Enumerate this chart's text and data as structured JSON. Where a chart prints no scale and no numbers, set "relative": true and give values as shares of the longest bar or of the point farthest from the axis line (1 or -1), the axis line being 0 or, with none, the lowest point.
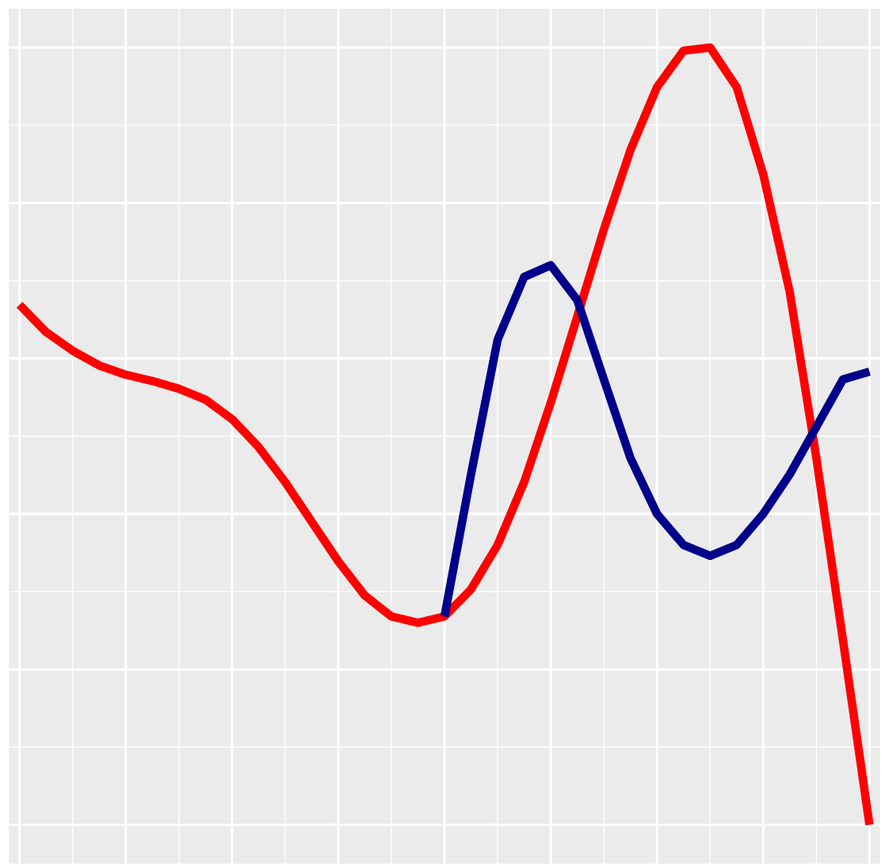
{
  "chart_data": {
    "type": "line",
    "relative": true,
    "grid": true,
    "legend": false,
    "line_style": "solid",
    "marker": "none",
    "categories": [
      null,
      null,
      null,
      null,
      null,
      null,
      null,
      null,
      null,
      null,
      null,
      null,
      null,
      null,
      null,
      null,
      null,
      null,
      null,
      null,
      null,
      null,
      null,
      null,
      null,
      null,
      null,
      null,
      null,
      null,
      null,
      null,
      null
    ],
    "series": [
      {
        "color": "#ff0000",
        "values": [
          0.669,
          0.634,
          0.61,
          0.591,
          0.579,
          0.571,
          0.561,
          0.547,
          0.522,
          0.486,
          0.441,
          0.39,
          0.339,
          0.295,
          0.268,
          0.26,
          0.268,
          0.303,
          0.36,
          0.441,
          0.543,
          0.654,
          0.766,
          0.868,
          0.949,
          0.996,
          1,
          0.949,
          0.837,
          0.685,
          0.472,
          0.238,
          0
        ]
      },
      {
        "color": "#00008b",
        "values": [
          null,
          null,
          null,
          null,
          null,
          null,
          null,
          null,
          null,
          null,
          null,
          null,
          null,
          null,
          null,
          null,
          0.268,
          0.451,
          0.624,
          0.705,
          0.72,
          0.675,
          0.573,
          0.472,
          0.4,
          0.36,
          0.346,
          0.36,
          0.4,
          0.451,
          0.512,
          0.573,
          0.583
        ]
      }
    ]
  }
}
